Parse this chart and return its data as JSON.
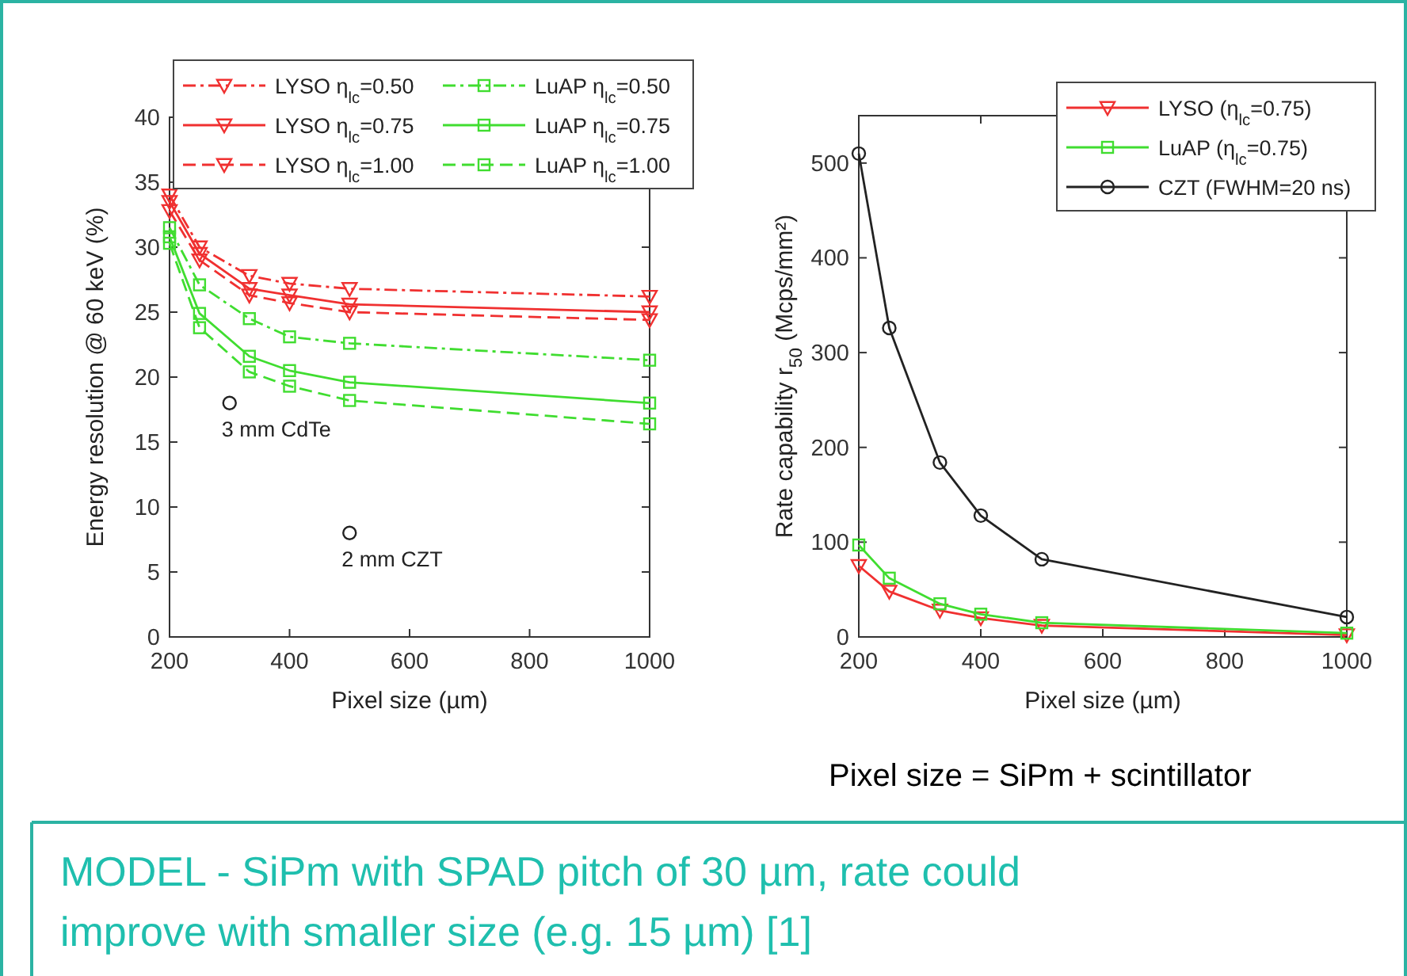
{
  "chart_data": [
    {
      "type": "line",
      "xlabel": "Pixel size (µm)",
      "ylabel": "Energy resolution @ 60 keV (%)",
      "x": [
        200,
        250,
        333,
        400,
        500,
        1000
      ],
      "xlim": [
        200,
        1000
      ],
      "xticks": [
        200,
        400,
        600,
        800,
        1000
      ],
      "ylim": [
        0,
        40
      ],
      "yticks": [
        0,
        5,
        10,
        15,
        20,
        25,
        30,
        35,
        40
      ],
      "legend": "top",
      "series": [
        {
          "name": "LYSO η$_{lc}$=0.50",
          "color": "#f03030",
          "line_style": "dashdot",
          "marker": "triangle",
          "values": [
            34,
            30,
            27.8,
            27.2,
            26.8,
            26.2
          ]
        },
        {
          "name": "LYSO η$_{lc}$=0.75",
          "color": "#f03030",
          "line_style": "solid",
          "marker": "triangle",
          "values": [
            33.5,
            29.5,
            26.8,
            26.3,
            25.6,
            25.0
          ]
        },
        {
          "name": "LYSO η$_{lc}$=1.00",
          "color": "#f03030",
          "line_style": "dashed",
          "marker": "triangle",
          "values": [
            32.8,
            29.0,
            26.3,
            25.7,
            25.0,
            24.4
          ]
        },
        {
          "name": "LuAP η$_{lc}$=0.50",
          "color": "#40dd30",
          "line_style": "dashdot",
          "marker": "square",
          "values": [
            31.5,
            27.1,
            24.5,
            23.1,
            22.6,
            21.3
          ]
        },
        {
          "name": "LuAP η$_{lc}$=0.75",
          "color": "#40dd30",
          "line_style": "solid",
          "marker": "square",
          "values": [
            30.8,
            24.9,
            21.6,
            20.5,
            19.6,
            18.0
          ]
        },
        {
          "name": "LuAP η$_{lc}$=1.00",
          "color": "#40dd30",
          "line_style": "dashed",
          "marker": "square",
          "values": [
            30.3,
            23.8,
            20.4,
            19.3,
            18.2,
            16.4
          ]
        },
        {
          "type": "scatter",
          "color": "#222222",
          "marker": "circle",
          "x": [
            300,
            500
          ],
          "values": [
            18,
            8
          ]
        }
      ],
      "annotations": [
        {
          "text": "3 mm CdTe",
          "x": 300,
          "y": 18
        },
        {
          "text": "2 mm CZT",
          "x": 500,
          "y": 8
        }
      ]
    },
    {
      "type": "line",
      "xlabel": "Pixel size (µm)",
      "ylabel": "Rate capability r$_{50}$ (Mcps/mm²)",
      "x": [
        200,
        250,
        333,
        400,
        500,
        1000
      ],
      "xlim": [
        200,
        1000
      ],
      "xticks": [
        200,
        400,
        600,
        800,
        1000
      ],
      "ylim": [
        0,
        550
      ],
      "yticks": [
        0,
        100,
        200,
        300,
        400,
        500
      ],
      "legend": "top right",
      "series": [
        {
          "name": "LYSO (η$_{lc}$=0.75)",
          "color": "#f03030",
          "marker": "triangle",
          "values": [
            75,
            48,
            28,
            20,
            12,
            2
          ]
        },
        {
          "name": "LuAP (η$_{lc}$=0.75)",
          "color": "#40dd30",
          "marker": "square",
          "values": [
            97,
            62,
            35,
            24,
            15,
            4
          ]
        },
        {
          "name": "CZT (FWHM=20 ns)",
          "color": "#222222",
          "marker": "circle",
          "values": [
            510,
            326,
            184,
            128,
            82,
            21
          ]
        }
      ],
      "annotations": [
        "Pixel size = SiPm + scintillator",
        "MODEL - SiPm with SPAD pitch of 30 µm, rate could improve with smaller size (e.g. 15 µm) [1]"
      ]
    }
  ]
}
